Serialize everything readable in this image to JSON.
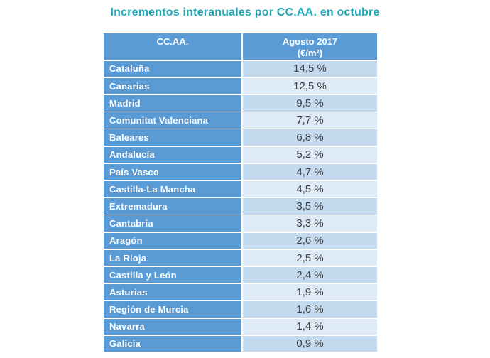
{
  "title": "Incrementos interanuales por CC.AA. en octubre",
  "table": {
    "header": {
      "ccaa": "CC.AA.",
      "value_line1": "Agosto 2017",
      "value_line2": "(€/m²)"
    },
    "rows": [
      {
        "name": "Cataluña",
        "value": "14,5 %"
      },
      {
        "name": "Canarias",
        "value": "12,5 %"
      },
      {
        "name": "Madrid",
        "value": "9,5 %"
      },
      {
        "name": "Comunitat Valenciana",
        "value": "7,7 %"
      },
      {
        "name": "Baleares",
        "value": "6,8 %"
      },
      {
        "name": "Andalucía",
        "value": "5,2 %"
      },
      {
        "name": "País Vasco",
        "value": "4,7 %"
      },
      {
        "name": "Castilla-La Mancha",
        "value": "4,5 %"
      },
      {
        "name": "Extremadura",
        "value": "3,5 %"
      },
      {
        "name": "Cantabria",
        "value": "3,3 %"
      },
      {
        "name": "Aragón",
        "value": "2,6 %"
      },
      {
        "name": "La Rioja",
        "value": "2,5 %"
      },
      {
        "name": "Castilla y León",
        "value": "2,4 %"
      },
      {
        "name": "Asturias",
        "value": "1,9 %"
      },
      {
        "name": "Región de Murcia",
        "value": "1,6 %"
      },
      {
        "name": "Navarra",
        "value": "1,4 %"
      },
      {
        "name": "Galicia",
        "value": "0,9 %"
      }
    ]
  },
  "colors": {
    "title_teal": "#21A8B8",
    "header_blue": "#5B9BD5",
    "name_blue": "#5B9BD5",
    "row_dark": "#C3DAEF",
    "row_light": "#DEEBF7",
    "value_text": "#3F3F3F"
  },
  "chart_data": {
    "type": "table",
    "title": "Incrementos interanuales por CC.AA. en octubre",
    "columns": [
      "CC.AA.",
      "Agosto 2017 (€/m²)"
    ],
    "unit": "%",
    "decimal_separator": ",",
    "rows": [
      [
        "Cataluña",
        14.5
      ],
      [
        "Canarias",
        12.5
      ],
      [
        "Madrid",
        9.5
      ],
      [
        "Comunitat Valenciana",
        7.7
      ],
      [
        "Baleares",
        6.8
      ],
      [
        "Andalucía",
        5.2
      ],
      [
        "País Vasco",
        4.7
      ],
      [
        "Castilla-La Mancha",
        4.5
      ],
      [
        "Extremadura",
        3.5
      ],
      [
        "Cantabria",
        3.3
      ],
      [
        "Aragón",
        2.6
      ],
      [
        "La Rioja",
        2.5
      ],
      [
        "Castilla y León",
        2.4
      ],
      [
        "Asturias",
        1.9
      ],
      [
        "Región de Murcia",
        1.6
      ],
      [
        "Navarra",
        1.4
      ],
      [
        "Galicia",
        0.9
      ]
    ]
  }
}
